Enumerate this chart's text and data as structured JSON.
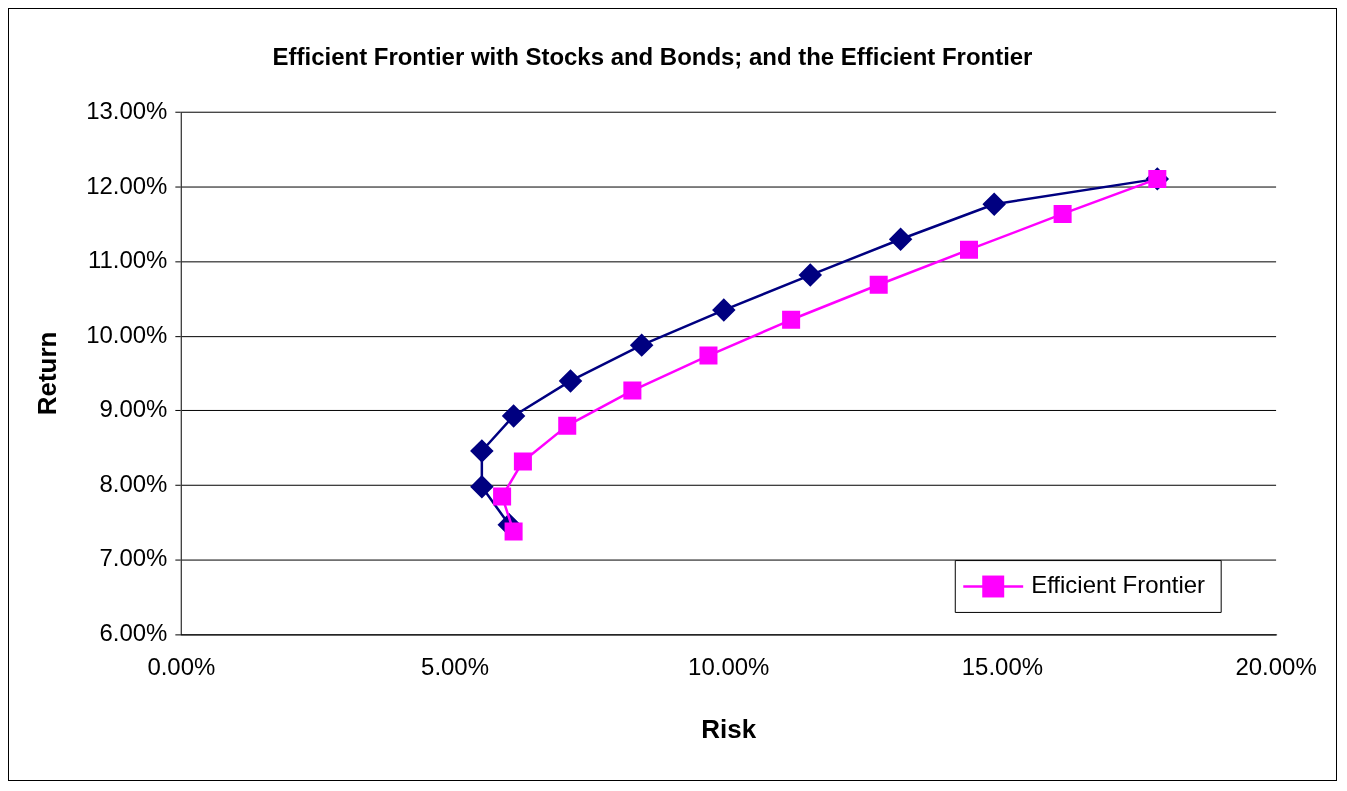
{
  "chart_data": {
    "type": "line",
    "title": "Efficient Frontier with Stocks and Bonds; and the Efficient Frontier",
    "xlabel": "Risk",
    "ylabel": "Return",
    "xlim": [
      0,
      20
    ],
    "xticks": [
      {
        "value": 0,
        "label": "0.00%"
      },
      {
        "value": 5,
        "label": "5.00%"
      },
      {
        "value": 10,
        "label": "10.00%"
      },
      {
        "value": 15,
        "label": "15.00%"
      },
      {
        "value": 20,
        "label": "20.00%"
      }
    ],
    "ylim": [
      6,
      13
    ],
    "yticks": [
      {
        "value": 6,
        "label": "6.00%"
      },
      {
        "value": 7,
        "label": "7.00%"
      },
      {
        "value": 8,
        "label": "8.00%"
      },
      {
        "value": 9,
        "label": "9.00%"
      },
      {
        "value": 10,
        "label": "10.00%"
      },
      {
        "value": 11,
        "label": "11.00%"
      },
      {
        "value": 12,
        "label": "12.00%"
      },
      {
        "value": 13,
        "label": "13.00%"
      }
    ],
    "grid": "y",
    "legend": "bottom right",
    "series": [
      {
        "color": "#000080",
        "marker": "diamond",
        "x": [
          5.99,
          5.49,
          5.49,
          6.07,
          7.11,
          8.41,
          9.91,
          11.49,
          13.14,
          14.85,
          17.83
        ],
        "values": [
          7.47,
          7.98,
          8.46,
          8.93,
          9.4,
          9.88,
          10.35,
          10.82,
          11.3,
          11.77,
          12.11
        ]
      },
      {
        "name": "Efficient Frontier",
        "color": "#ff00ff",
        "marker": "square",
        "x": [
          6.07,
          5.86,
          6.24,
          7.05,
          8.24,
          9.63,
          11.14,
          12.74,
          14.39,
          16.1,
          17.83
        ],
        "values": [
          7.38,
          7.85,
          8.32,
          8.8,
          9.27,
          9.74,
          10.22,
          10.69,
          11.16,
          11.64,
          12.11
        ]
      }
    ]
  }
}
